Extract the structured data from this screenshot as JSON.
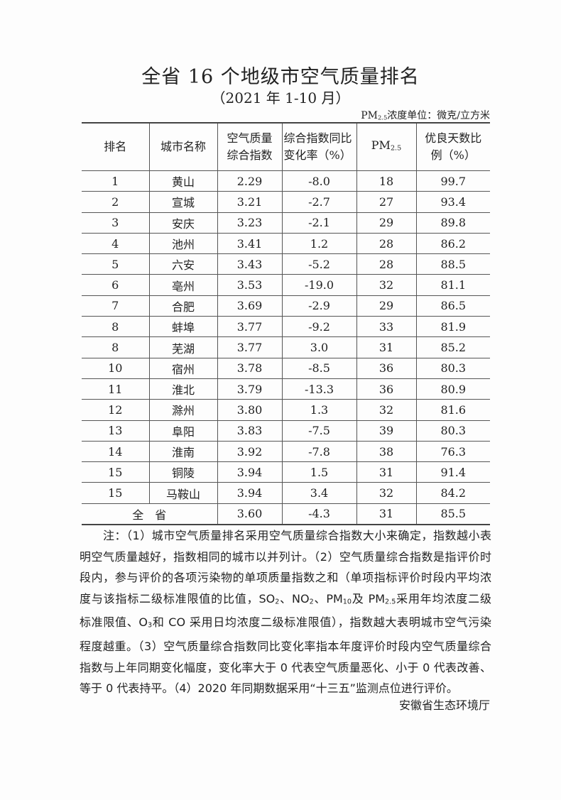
{
  "title": "全省 16 个地级市空气质量排名",
  "subtitle": "（2021 年 1-10 月）",
  "unit": {
    "pre": "PM",
    "sub": "2.5",
    "post": "浓度单位：微克/立方米"
  },
  "headers": {
    "rank": "排名",
    "city": "城市名称",
    "index": "空气质量综合指数",
    "change": "综合指数同比变化率（%）",
    "pm_pre": "PM",
    "pm_sub": "2.5",
    "good": "优良天数比例（%）"
  },
  "rows": [
    [
      "1",
      "黄山",
      "2.29",
      "-8.0",
      "18",
      "99.7"
    ],
    [
      "2",
      "宣城",
      "3.21",
      "-2.7",
      "27",
      "93.4"
    ],
    [
      "3",
      "安庆",
      "3.23",
      "-2.1",
      "29",
      "89.8"
    ],
    [
      "4",
      "池州",
      "3.41",
      "1.2",
      "28",
      "86.2"
    ],
    [
      "5",
      "六安",
      "3.43",
      "-5.2",
      "28",
      "88.5"
    ],
    [
      "6",
      "亳州",
      "3.53",
      "-19.0",
      "32",
      "81.1"
    ],
    [
      "7",
      "合肥",
      "3.69",
      "-2.9",
      "29",
      "86.5"
    ],
    [
      "8",
      "蚌埠",
      "3.77",
      "-9.2",
      "33",
      "81.9"
    ],
    [
      "8",
      "芜湖",
      "3.77",
      "3.0",
      "31",
      "85.2"
    ],
    [
      "10",
      "宿州",
      "3.78",
      "-8.5",
      "36",
      "80.3"
    ],
    [
      "11",
      "淮北",
      "3.79",
      "-13.3",
      "36",
      "80.9"
    ],
    [
      "12",
      "滁州",
      "3.80",
      "1.3",
      "32",
      "81.6"
    ],
    [
      "13",
      "阜阳",
      "3.83",
      "-7.5",
      "39",
      "80.3"
    ],
    [
      "14",
      "淮南",
      "3.92",
      "-7.8",
      "38",
      "76.3"
    ],
    [
      "15",
      "铜陵",
      "3.94",
      "1.5",
      "31",
      "91.4"
    ],
    [
      "15",
      "马鞍山",
      "3.94",
      "3.4",
      "32",
      "84.2"
    ]
  ],
  "total": {
    "label": "全　省",
    "index": "3.60",
    "change": "-4.3",
    "pm": "31",
    "good": "85.5"
  },
  "notes": [
    [
      {
        "t": "　　注：（1）城市空气质量排名采用空气质量综合指数大小来确定，指数越小表"
      }
    ],
    [
      {
        "t": "明空气质量越好，指数相同的城市以并列计。（2）空气质量综合指数是指评价时"
      }
    ],
    [
      {
        "t": "段内，参与评价的各项污染物的单项质量指数之和（单项指标评价时段内平均浓"
      }
    ],
    [
      {
        "t": "度与该指标二级标准限值的比值，SO"
      },
      {
        "t": "2",
        "sub": true
      },
      {
        "t": "、NO"
      },
      {
        "t": "2",
        "sub": true
      },
      {
        "t": "、PM"
      },
      {
        "t": "10",
        "sub": true
      },
      {
        "t": "及 PM"
      },
      {
        "t": "2.5",
        "sub": true
      },
      {
        "t": "采用年均浓度二级"
      }
    ],
    [
      {
        "t": "标准限值、O"
      },
      {
        "t": "3",
        "sub": true
      },
      {
        "t": "和 CO 采用日均浓度二级标准限值），指数越大表明城市空气污染"
      }
    ],
    [
      {
        "t": "程度越重。（3）空气质量综合指数同比变化率指本年度评价时段内空气质量综合"
      }
    ],
    [
      {
        "t": "指数与上年同期变化幅度，变化率大于 0 代表空气质量恶化、小于 0 代表改善、"
      }
    ],
    [
      {
        "t": "等于 0 代表持平。（4）2020 年同期数据采用“十三五”监测点位进行评价。"
      }
    ]
  ],
  "author": "安徽省生态环境厅"
}
